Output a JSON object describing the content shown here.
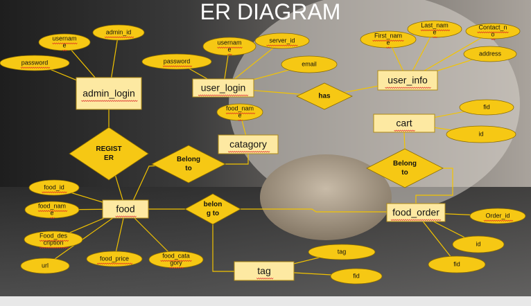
{
  "title": "ER DIAGRAM",
  "colors": {
    "shape_fill": "#f6c814",
    "shape_stroke": "#8a6c00",
    "line": "#f3c400",
    "entity_fill": "#fde9a2",
    "entity_stroke": "#b08a14"
  },
  "entities": {
    "admin_login": "admin_login",
    "user_login": "user_login",
    "user_info": "user_info",
    "catagory": "catagory",
    "cart": "cart",
    "food": "food",
    "food_order": "food_order",
    "tag": "tag"
  },
  "relationships": {
    "register": [
      "REGIST",
      "ER"
    ],
    "has": [
      "has"
    ],
    "belong_to_1": [
      "Belong",
      "to"
    ],
    "belong_to_2": [
      "belon",
      "g to"
    ],
    "belong_to_3": [
      "Belong",
      "to"
    ]
  },
  "attributes": {
    "admin_username": [
      "usernam",
      "e"
    ],
    "admin_id": [
      "admin_id"
    ],
    "admin_password": [
      "password"
    ],
    "ul_username": [
      "usernam",
      "e"
    ],
    "ul_server_id": [
      "server_id"
    ],
    "ul_password": [
      "password"
    ],
    "ul_email": [
      "email"
    ],
    "ui_first_name": [
      "First_nam",
      "e"
    ],
    "ui_last_name": [
      "Last_nam",
      "e"
    ],
    "ui_contact_no": [
      "Contact_n",
      "o"
    ],
    "ui_address": [
      "address"
    ],
    "cat_food_name": [
      "food_nam",
      "e"
    ],
    "cart_fid": [
      "fid"
    ],
    "cart_id": [
      "id"
    ],
    "food_id": [
      "food_id"
    ],
    "food_name": [
      "food_nam",
      "e"
    ],
    "food_description": [
      "Food_des",
      "cription"
    ],
    "food_url": [
      "url"
    ],
    "food_price": [
      "food_price"
    ],
    "food_category": [
      "food_cata",
      "gory"
    ],
    "fo_order_id": [
      "Order_id"
    ],
    "fo_id": [
      "id"
    ],
    "fo_fid": [
      "fid"
    ],
    "tag_tag": [
      "tag"
    ],
    "tag_fid": [
      "fid"
    ]
  }
}
